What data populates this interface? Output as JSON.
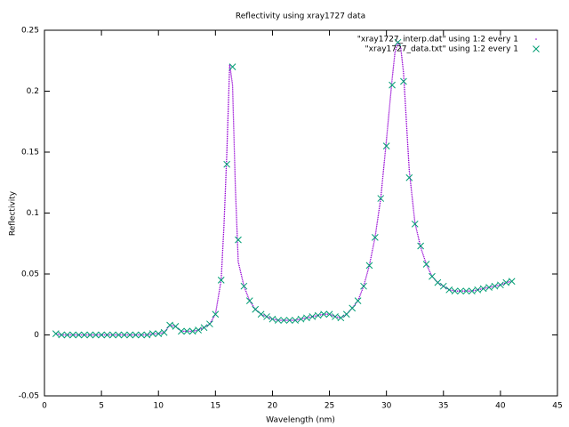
{
  "chart_data": {
    "type": "scatter",
    "title": "Reflectivity using xray1727 data",
    "x_label": "Wavelength (nm)",
    "y_label": "Reflectivity",
    "xlim": [
      0,
      45
    ],
    "ylim": [
      -0.05,
      0.25
    ],
    "xticks": [
      0,
      5,
      10,
      15,
      20,
      25,
      30,
      35,
      40,
      45
    ],
    "yticks": [
      -0.05,
      0,
      0.05,
      0.1,
      0.15,
      0.2,
      0.25
    ],
    "legend": "top-right",
    "series": [
      {
        "name": "\"xray1727_interp.dat\" using 1:2 every 1",
        "color": "#9400d3",
        "style": "dots",
        "x": [
          1,
          1.5,
          2,
          2.5,
          3,
          3.5,
          4,
          4.5,
          5,
          5.5,
          6,
          6.5,
          7,
          7.5,
          8,
          8.5,
          9,
          9.5,
          10,
          10.5,
          11,
          11.5,
          12,
          12.5,
          13,
          13.5,
          14,
          14.5,
          15,
          15.5,
          15.75,
          16,
          16.25,
          16.5,
          16.75,
          17,
          17.5,
          18,
          18.5,
          19,
          19.5,
          20,
          20.5,
          21,
          21.5,
          22,
          22.5,
          23,
          23.5,
          24,
          24.5,
          25,
          25.5,
          26,
          26.5,
          27,
          27.5,
          28,
          28.5,
          29,
          29.5,
          30,
          30.5,
          30.75,
          31,
          31.25,
          31.5,
          32,
          32.5,
          33,
          33.5,
          34,
          34.5,
          35,
          35.5,
          36,
          36.5,
          37,
          37.5,
          38,
          38.5,
          39,
          39.5,
          40,
          40.5,
          41
        ],
        "values": [
          0.001,
          0,
          0,
          0,
          0,
          0,
          0,
          0,
          0,
          0,
          0,
          0,
          0,
          0,
          0,
          0,
          0,
          0.001,
          0.001,
          0.002,
          0.008,
          0.007,
          0.003,
          0.003,
          0.003,
          0.004,
          0.006,
          0.009,
          0.017,
          0.045,
          0.09,
          0.15,
          0.222,
          0.205,
          0.12,
          0.06,
          0.04,
          0.028,
          0.021,
          0.017,
          0.015,
          0.013,
          0.012,
          0.012,
          0.012,
          0.012,
          0.013,
          0.014,
          0.015,
          0.016,
          0.017,
          0.017,
          0.015,
          0.014,
          0.017,
          0.022,
          0.028,
          0.04,
          0.057,
          0.08,
          0.112,
          0.16,
          0.21,
          0.232,
          0.24,
          0.236,
          0.215,
          0.135,
          0.092,
          0.072,
          0.058,
          0.048,
          0.043,
          0.04,
          0.037,
          0.036,
          0.036,
          0.036,
          0.036,
          0.037,
          0.038,
          0.039,
          0.04,
          0.041,
          0.043,
          0.044
        ]
      },
      {
        "name": "\"xray1727_data.txt\" using 1:2 every 1",
        "color": "#009e73",
        "style": "x",
        "x": [
          1,
          1.5,
          2,
          2.5,
          3,
          3.5,
          4,
          4.5,
          5,
          5.5,
          6,
          6.5,
          7,
          7.5,
          8,
          8.5,
          9,
          9.5,
          10,
          10.5,
          11,
          11.5,
          12,
          12.5,
          13,
          13.5,
          14,
          14.5,
          15,
          15.5,
          16,
          16.5,
          17,
          17.5,
          18,
          18.5,
          19,
          19.5,
          20,
          20.5,
          21,
          21.5,
          22,
          22.5,
          23,
          23.5,
          24,
          24.5,
          25,
          25.5,
          26,
          26.5,
          27,
          27.5,
          28,
          28.5,
          29,
          29.5,
          30,
          30.5,
          31,
          31.5,
          32,
          32.5,
          33,
          33.5,
          34,
          34.5,
          35,
          35.5,
          36,
          36.5,
          37,
          37.5,
          38,
          38.5,
          39,
          39.5,
          40,
          40.5,
          41
        ],
        "values": [
          0.001,
          0,
          0,
          0,
          0,
          0,
          0,
          0,
          0,
          0,
          0,
          0,
          0,
          0,
          0,
          0,
          0,
          0.001,
          0.001,
          0.002,
          0.008,
          0.007,
          0.003,
          0.003,
          0.003,
          0.004,
          0.006,
          0.009,
          0.017,
          0.045,
          0.14,
          0.22,
          0.078,
          0.04,
          0.028,
          0.021,
          0.017,
          0.015,
          0.013,
          0.012,
          0.012,
          0.012,
          0.012,
          0.013,
          0.014,
          0.015,
          0.016,
          0.017,
          0.017,
          0.015,
          0.014,
          0.017,
          0.022,
          0.028,
          0.04,
          0.057,
          0.08,
          0.112,
          0.155,
          0.205,
          0.24,
          0.208,
          0.129,
          0.091,
          0.073,
          0.058,
          0.048,
          0.043,
          0.04,
          0.037,
          0.036,
          0.036,
          0.036,
          0.036,
          0.037,
          0.038,
          0.039,
          0.04,
          0.041,
          0.043,
          0.044
        ]
      }
    ]
  }
}
